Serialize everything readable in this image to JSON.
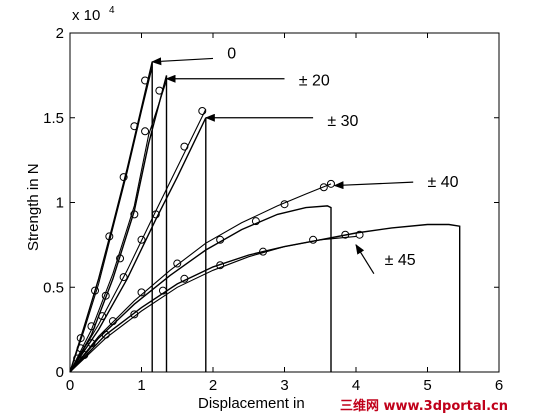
{
  "chart_data": {
    "type": "line",
    "xlabel": "Displacement in",
    "ylabel": "Strength in N",
    "y_exponent_label": "x 10",
    "y_exponent": "4",
    "xlim": [
      0,
      6
    ],
    "ylim": [
      0,
      2
    ],
    "x_ticks": [
      "0",
      "1",
      "2",
      "3",
      "4",
      "5",
      "6"
    ],
    "y_ticks": [
      "0",
      "0.5",
      "1",
      "1.5",
      "2"
    ],
    "grid": false,
    "series": [
      {
        "name": "0",
        "label": "0",
        "lines": [
          [
            [
              0,
              0
            ],
            [
              0.2,
              0.27
            ],
            [
              0.4,
              0.55
            ],
            [
              0.6,
              0.87
            ],
            [
              0.8,
              1.2
            ],
            [
              1.0,
              1.56
            ],
            [
              1.15,
              1.83
            ],
            [
              1.15,
              0
            ]
          ],
          [
            [
              0,
              0
            ],
            [
              0.2,
              0.25
            ],
            [
              0.4,
              0.52
            ],
            [
              0.6,
              0.85
            ],
            [
              0.8,
              1.18
            ],
            [
              1.0,
              1.54
            ],
            [
              1.15,
              1.8
            ]
          ]
        ],
        "markers": [
          [
            0.15,
            0.2
          ],
          [
            0.35,
            0.48
          ],
          [
            0.55,
            0.8
          ],
          [
            0.75,
            1.15
          ],
          [
            0.9,
            1.45
          ],
          [
            1.05,
            1.72
          ]
        ],
        "arrow_from": [
          2.0,
          1.85
        ],
        "arrow_to": [
          1.15,
          1.83
        ],
        "label_at": [
          2.2,
          1.88
        ]
      },
      {
        "name": "± 20",
        "label": "± 20",
        "lines": [
          [
            [
              0,
              0
            ],
            [
              0.3,
              0.22
            ],
            [
              0.6,
              0.55
            ],
            [
              0.9,
              0.95
            ],
            [
              1.1,
              1.35
            ],
            [
              1.35,
              1.75
            ],
            [
              1.35,
              0
            ]
          ],
          [
            [
              0,
              0
            ],
            [
              0.3,
              0.25
            ],
            [
              0.6,
              0.58
            ],
            [
              0.9,
              0.98
            ],
            [
              1.1,
              1.4
            ],
            [
              1.35,
              1.72
            ]
          ]
        ],
        "markers": [
          [
            0.1,
            0.08
          ],
          [
            0.3,
            0.27
          ],
          [
            0.5,
            0.45
          ],
          [
            0.7,
            0.67
          ],
          [
            0.9,
            0.93
          ],
          [
            1.05,
            1.42
          ],
          [
            1.25,
            1.66
          ]
        ],
        "arrow_from": [
          3.0,
          1.73
        ],
        "arrow_to": [
          1.35,
          1.73
        ],
        "label_at": [
          3.2,
          1.72
        ]
      },
      {
        "name": "± 30",
        "label": "± 30",
        "lines": [
          [
            [
              0,
              0
            ],
            [
              0.4,
              0.25
            ],
            [
              0.8,
              0.55
            ],
            [
              1.2,
              0.9
            ],
            [
              1.5,
              1.15
            ],
            [
              1.9,
              1.5
            ],
            [
              1.9,
              0
            ]
          ],
          [
            [
              0,
              0
            ],
            [
              0.4,
              0.28
            ],
            [
              0.8,
              0.6
            ],
            [
              1.2,
              0.95
            ],
            [
              1.55,
              1.25
            ],
            [
              1.9,
              1.55
            ]
          ]
        ],
        "markers": [
          [
            0.15,
            0.14
          ],
          [
            0.45,
            0.33
          ],
          [
            0.75,
            0.56
          ],
          [
            1.0,
            0.78
          ],
          [
            1.2,
            0.93
          ],
          [
            1.6,
            1.33
          ],
          [
            1.85,
            1.54
          ]
        ],
        "arrow_from": [
          3.4,
          1.5
        ],
        "arrow_to": [
          1.9,
          1.5
        ],
        "label_at": [
          3.6,
          1.48
        ]
      },
      {
        "name": "± 40",
        "label": "± 40",
        "lines": [
          [
            [
              0,
              0
            ],
            [
              0.4,
              0.2
            ],
            [
              0.9,
              0.4
            ],
            [
              1.4,
              0.57
            ],
            [
              1.9,
              0.72
            ],
            [
              2.4,
              0.84
            ],
            [
              2.9,
              0.93
            ],
            [
              3.3,
              0.97
            ],
            [
              3.6,
              0.98
            ],
            [
              3.65,
              0.97
            ],
            [
              3.65,
              0
            ]
          ],
          [
            [
              0,
              0
            ],
            [
              0.4,
              0.21
            ],
            [
              0.9,
              0.42
            ],
            [
              1.4,
              0.6
            ],
            [
              1.9,
              0.76
            ],
            [
              2.4,
              0.88
            ],
            [
              2.9,
              0.98
            ],
            [
              3.3,
              1.05
            ],
            [
              3.65,
              1.11
            ]
          ]
        ],
        "markers": [
          [
            0.3,
            0.17
          ],
          [
            0.6,
            0.3
          ],
          [
            1.0,
            0.47
          ],
          [
            1.5,
            0.64
          ],
          [
            2.1,
            0.78
          ],
          [
            2.6,
            0.89
          ],
          [
            3.0,
            0.99
          ],
          [
            3.55,
            1.09
          ],
          [
            3.65,
            1.11
          ]
        ],
        "arrow_from": [
          4.8,
          1.12
        ],
        "arrow_to": [
          3.7,
          1.1
        ],
        "label_at": [
          5.0,
          1.12
        ]
      },
      {
        "name": "± 45",
        "label": "± 45",
        "lines": [
          [
            [
              0,
              0
            ],
            [
              0.5,
              0.22
            ],
            [
              1.0,
              0.38
            ],
            [
              1.5,
              0.52
            ],
            [
              2.0,
              0.62
            ],
            [
              2.5,
              0.69
            ],
            [
              3.0,
              0.74
            ],
            [
              3.5,
              0.78
            ],
            [
              4.0,
              0.82
            ],
            [
              4.5,
              0.85
            ],
            [
              5.0,
              0.87
            ],
            [
              5.3,
              0.87
            ],
            [
              5.45,
              0.86
            ],
            [
              5.45,
              0
            ]
          ],
          [
            [
              0,
              0
            ],
            [
              0.5,
              0.2
            ],
            [
              1.0,
              0.36
            ],
            [
              1.5,
              0.5
            ],
            [
              2.0,
              0.6
            ],
            [
              2.5,
              0.68
            ],
            [
              3.0,
              0.74
            ],
            [
              3.5,
              0.78
            ],
            [
              4.0,
              0.8
            ]
          ]
        ],
        "markers": [
          [
            0.2,
            0.1
          ],
          [
            0.5,
            0.22
          ],
          [
            0.9,
            0.34
          ],
          [
            1.3,
            0.48
          ],
          [
            1.6,
            0.55
          ],
          [
            2.1,
            0.63
          ],
          [
            2.7,
            0.71
          ],
          [
            3.4,
            0.78
          ],
          [
            3.85,
            0.81
          ],
          [
            4.05,
            0.81
          ]
        ],
        "arrow_from": [
          4.25,
          0.58
        ],
        "arrow_to": [
          4.0,
          0.75
        ],
        "label_at": [
          4.4,
          0.66
        ]
      }
    ]
  },
  "watermark": "三维网 www.3dportal.cn",
  "colors": {
    "line": "#000000",
    "marker": "#000000",
    "watermark": "#c0001a"
  }
}
